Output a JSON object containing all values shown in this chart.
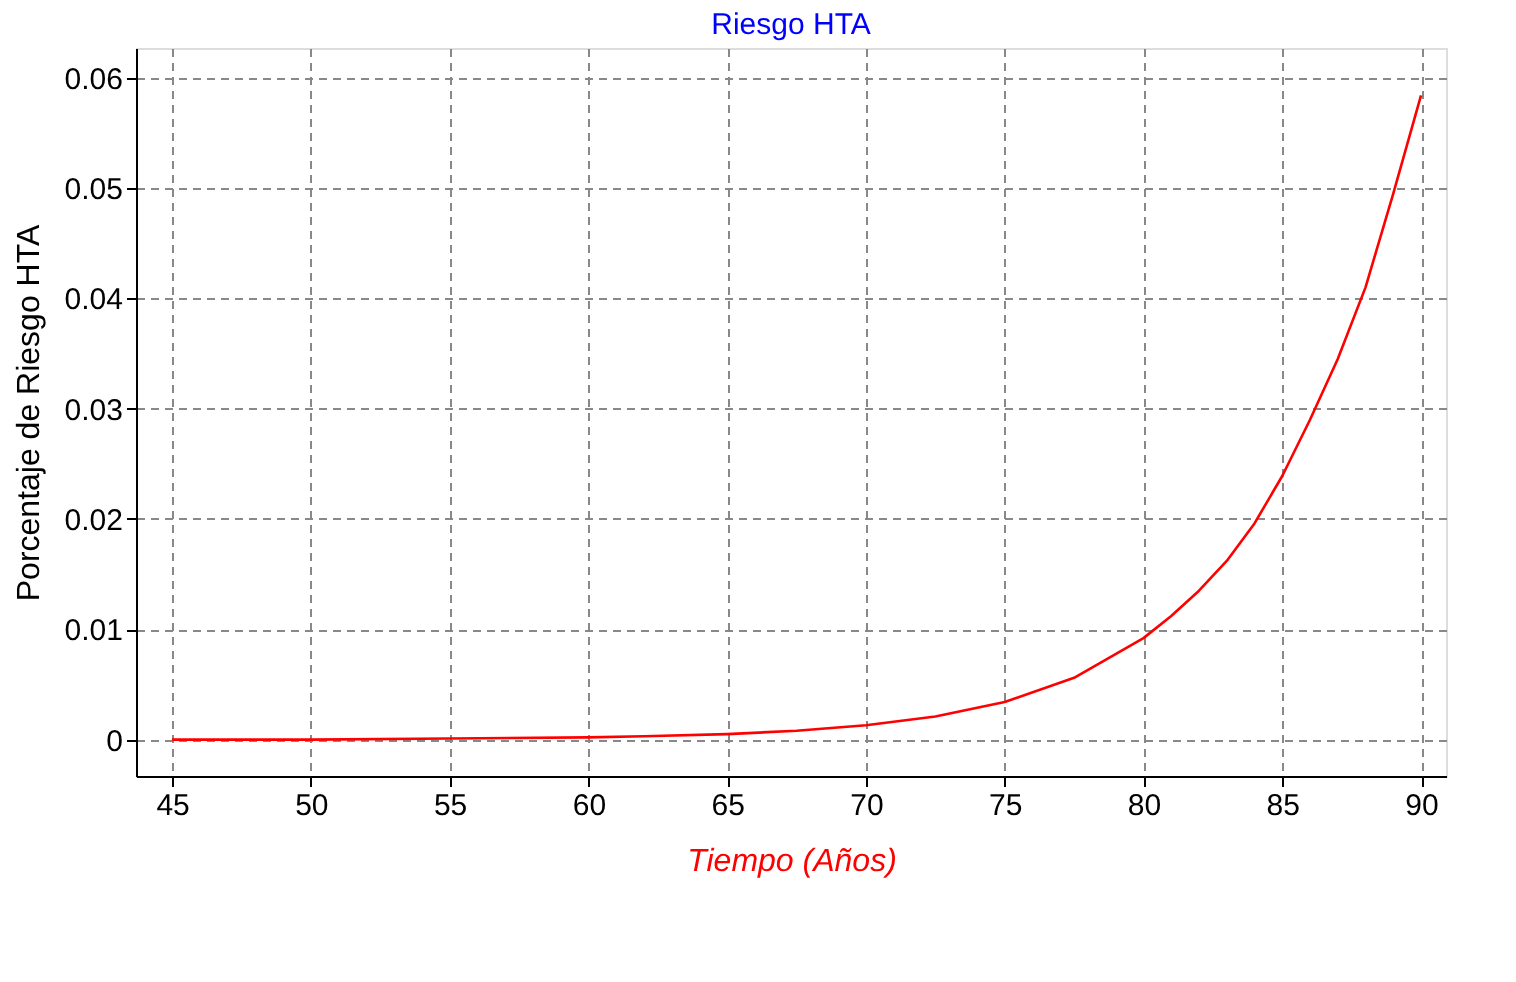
{
  "chart_data": {
    "type": "line",
    "title": "Riesgo HTA",
    "xlabel": "Tiempo (Años)",
    "ylabel": "Porcentaje de Riesgo HTA",
    "x": [
      45,
      50,
      55,
      60,
      62,
      65,
      67.5,
      70,
      72.5,
      75,
      77.5,
      80,
      81,
      82,
      83,
      84,
      85,
      86,
      87,
      88,
      89,
      90
    ],
    "series": [
      {
        "color": "#ff0000",
        "values": [
          0,
          0,
          0.0001,
          0.0002,
          0.0003,
          0.0005,
          0.0008,
          0.0013,
          0.0021,
          0.0034,
          0.0056,
          0.0092,
          0.0112,
          0.0135,
          0.0162,
          0.0196,
          0.0239,
          0.029,
          0.0345,
          0.041,
          0.0495,
          0.0584
        ]
      }
    ],
    "xlim": [
      43.7,
      90.9
    ],
    "ylim": [
      -0.0033,
      0.0627
    ],
    "xticks": [
      45,
      50,
      55,
      60,
      65,
      70,
      75,
      80,
      85,
      90
    ],
    "yticks": [
      0,
      0.01,
      0.02,
      0.03,
      0.04,
      0.05,
      0.06
    ],
    "grid": true,
    "marker": "none",
    "line_style": "solid"
  }
}
